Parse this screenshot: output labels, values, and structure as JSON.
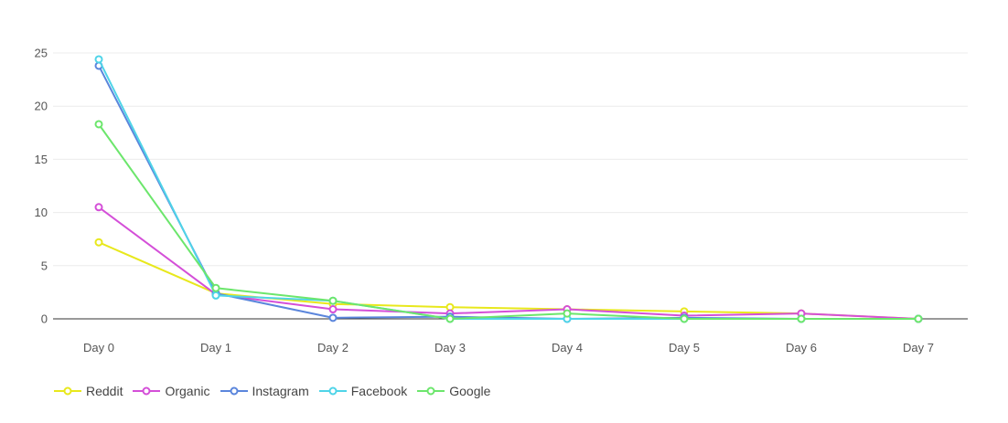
{
  "chart_data": {
    "type": "line",
    "categories": [
      "Day 0",
      "Day 1",
      "Day 2",
      "Day 3",
      "Day 4",
      "Day 5",
      "Day 6",
      "Day 7"
    ],
    "ylim": [
      0,
      25
    ],
    "yticks": [
      "0",
      "5",
      "10",
      "15",
      "20",
      "25"
    ],
    "grid": true,
    "legend_position": "bottom-left",
    "series": [
      {
        "name": "Reddit",
        "color": "#e8e81c",
        "values": [
          7.2,
          2.4,
          1.4,
          1.1,
          0.9,
          0.7,
          0.5,
          0.0
        ]
      },
      {
        "name": "Organic",
        "color": "#d44fd8",
        "values": [
          10.5,
          2.3,
          0.9,
          0.5,
          0.9,
          0.3,
          0.5,
          0.0
        ]
      },
      {
        "name": "Instagram",
        "color": "#5b86dc",
        "values": [
          23.8,
          2.4,
          0.1,
          0.2,
          0.0,
          0.1,
          0.0,
          0.0
        ]
      },
      {
        "name": "Facebook",
        "color": "#4fd4e8",
        "values": [
          24.4,
          2.2,
          1.7,
          0.0,
          0.0,
          0.0,
          0.0,
          0.0
        ]
      },
      {
        "name": "Google",
        "color": "#6ce66c",
        "values": [
          18.3,
          2.9,
          1.7,
          0.0,
          0.5,
          0.0,
          0.0,
          0.0
        ]
      }
    ]
  }
}
